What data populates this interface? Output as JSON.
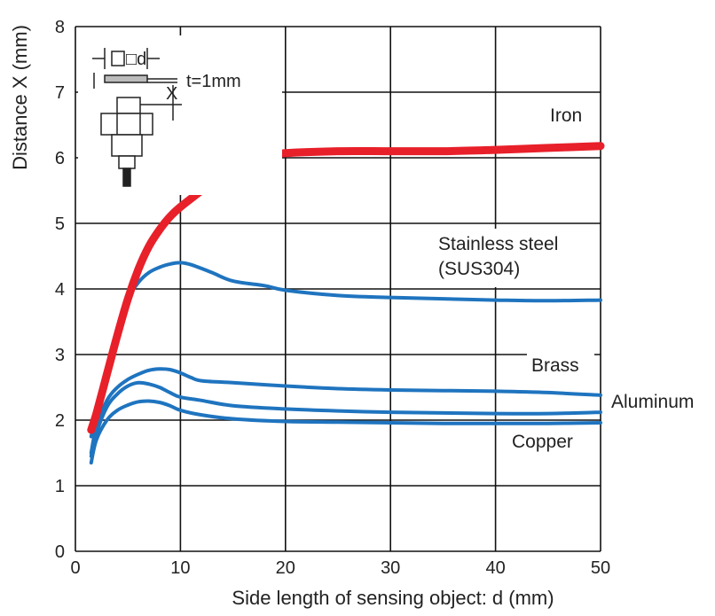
{
  "chart_data": {
    "type": "line",
    "title": "",
    "xlabel": "Side length of sensing object: d (mm)",
    "ylabel": "Distance X (mm)",
    "xlim": [
      0,
      50
    ],
    "ylim": [
      0,
      8
    ],
    "x_ticks": [
      "0",
      "10",
      "20",
      "30",
      "40",
      "50"
    ],
    "y_ticks": [
      "0",
      "1",
      "2",
      "3",
      "4",
      "5",
      "6",
      "7",
      "8"
    ],
    "grid": true,
    "legend": "inline-labels",
    "inset": {
      "object_label": "□d",
      "thickness_label": "t=1mm",
      "distance_label": "X"
    },
    "series": [
      {
        "name": "Iron",
        "color": "#e8202a",
        "label_lines": [
          "Iron"
        ],
        "x": [
          1.5,
          2,
          3,
          4,
          5,
          6,
          7,
          8,
          9,
          10,
          12,
          14,
          16,
          18,
          20,
          25,
          30,
          35,
          40,
          45,
          50
        ],
        "y": [
          1.85,
          2.1,
          2.7,
          3.3,
          3.85,
          4.3,
          4.65,
          4.9,
          5.1,
          5.25,
          5.5,
          5.75,
          5.92,
          6.02,
          6.07,
          6.1,
          6.1,
          6.1,
          6.12,
          6.15,
          6.18
        ]
      },
      {
        "name": "Stainless steel (SUS304)",
        "color": "#1f74bf",
        "label_lines": [
          "Stainless steel",
          "(SUS304)"
        ],
        "x": [
          1.5,
          2,
          3,
          4,
          5,
          6,
          7,
          8,
          9,
          10,
          11,
          13,
          15,
          18,
          20,
          25,
          30,
          35,
          40,
          45,
          50
        ],
        "y": [
          1.75,
          2.1,
          2.8,
          3.4,
          3.85,
          4.1,
          4.25,
          4.33,
          4.38,
          4.4,
          4.37,
          4.25,
          4.12,
          4.05,
          3.98,
          3.9,
          3.87,
          3.85,
          3.83,
          3.82,
          3.83
        ]
      },
      {
        "name": "Brass",
        "color": "#1f74bf",
        "label_lines": [
          "Brass"
        ],
        "x": [
          1.5,
          2,
          3,
          4,
          5,
          6,
          7,
          8,
          9,
          10,
          11,
          12,
          15,
          20,
          25,
          30,
          35,
          40,
          45,
          50
        ],
        "y": [
          1.5,
          1.9,
          2.3,
          2.5,
          2.62,
          2.7,
          2.76,
          2.78,
          2.77,
          2.72,
          2.65,
          2.6,
          2.57,
          2.52,
          2.48,
          2.46,
          2.45,
          2.44,
          2.42,
          2.38
        ]
      },
      {
        "name": "Aluminum",
        "color": "#1f74bf",
        "label_lines": [
          "Aluminum"
        ],
        "x": [
          1.5,
          2,
          3,
          4,
          5,
          6,
          7,
          8,
          9,
          10,
          12,
          15,
          20,
          25,
          30,
          35,
          40,
          45,
          50
        ],
        "y": [
          1.45,
          1.8,
          2.2,
          2.4,
          2.52,
          2.57,
          2.55,
          2.5,
          2.42,
          2.35,
          2.3,
          2.22,
          2.17,
          2.14,
          2.12,
          2.11,
          2.1,
          2.1,
          2.12
        ]
      },
      {
        "name": "Copper",
        "color": "#1f74bf",
        "label_lines": [
          "Copper"
        ],
        "x": [
          1.5,
          2,
          3,
          4,
          5,
          6,
          7,
          8,
          9,
          10,
          12,
          15,
          20,
          25,
          30,
          35,
          40,
          45,
          50
        ],
        "y": [
          1.35,
          1.7,
          2.0,
          2.15,
          2.23,
          2.28,
          2.29,
          2.27,
          2.22,
          2.15,
          2.08,
          2.02,
          1.98,
          1.97,
          1.96,
          1.95,
          1.95,
          1.95,
          1.96
        ]
      }
    ]
  }
}
